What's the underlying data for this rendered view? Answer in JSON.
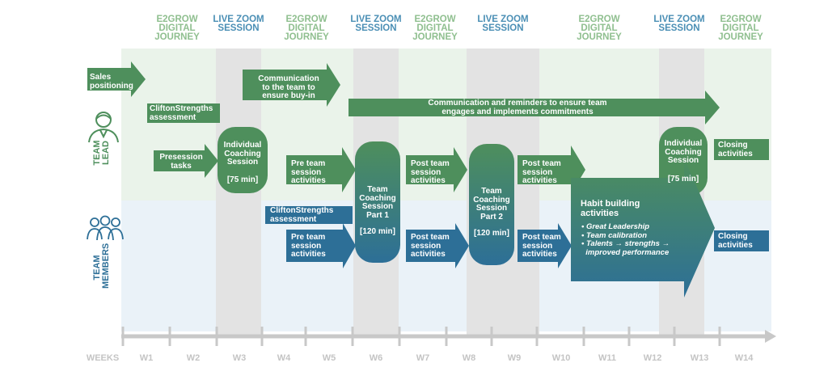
{
  "headers": {
    "e2grow": [
      "E2GROW",
      "DIGITAL",
      "JOURNEY"
    ],
    "livezoom": [
      "LIVE ZOOM",
      "SESSION"
    ]
  },
  "roles": {
    "team_lead": "TEAM\nLEAD",
    "team_members": "TEAM\nMEMBERS"
  },
  "weeks": {
    "label": "WEEKS",
    "items": [
      "W1",
      "W2",
      "W3",
      "W4",
      "W5",
      "W6",
      "W7",
      "W8",
      "W9",
      "W10",
      "W11",
      "W12",
      "W13",
      "W14"
    ]
  },
  "lead": {
    "sales_positioning": [
      "Sales",
      "positioning"
    ],
    "communication_buyin": [
      "Communication",
      "to the team to",
      "ensure buy-in"
    ],
    "clifton_lead": [
      "CliftonStrengths",
      "assessment"
    ],
    "communication_reminders": [
      "Communication and reminders to ensure team",
      "engages and  implements commitments"
    ],
    "presession": [
      "Presession",
      "tasks"
    ],
    "individual_1": {
      "lines": [
        "Individual",
        "Coaching",
        "Session"
      ],
      "duration": "[75 min]"
    },
    "pre_team_lead": [
      "Pre team",
      "session",
      "activities"
    ],
    "post_team_lead_1": [
      "Post team",
      "session",
      "activities"
    ],
    "post_team_lead_2": [
      "Post team",
      "session",
      "activities"
    ],
    "individual_2": {
      "lines": [
        "Individual",
        "Coaching",
        "Session"
      ],
      "duration": "[75 min]"
    },
    "closing_lead": [
      "Closing",
      "activities"
    ]
  },
  "shared": {
    "team_coaching_1": {
      "lines": [
        "Team",
        "Coaching",
        "Session",
        "Part 1"
      ],
      "duration": "[120 min]"
    },
    "team_coaching_2": {
      "lines": [
        "Team",
        "Coaching",
        "Session",
        "Part 2"
      ],
      "duration": "[120 min]"
    }
  },
  "members": {
    "clifton_members": [
      "CliftonStrengths",
      "assessment"
    ],
    "pre_team_members": [
      "Pre team",
      "session",
      "activities"
    ],
    "post_team_members_1": [
      "Post team",
      "session",
      "activities"
    ],
    "post_team_members_2": [
      "Post team",
      "session",
      "activities"
    ],
    "habit": {
      "title": [
        "Habit building",
        "activities"
      ],
      "items": [
        "• Great Leadership",
        "• Team calibration",
        "• Talents → strengths →",
        "  improved performance"
      ]
    },
    "closing_members": [
      "Closing",
      "activities"
    ]
  },
  "colors": {
    "lead_green": "#4e8f5c",
    "member_blue": "#2d6f97",
    "lead_bg": "#eaf3ea",
    "member_bg": "#eaf2f8",
    "band_gray": "#e3e3e3",
    "timeline_gray": "#c8c8c8"
  },
  "icons": [
    "person-icon",
    "group-icon"
  ]
}
